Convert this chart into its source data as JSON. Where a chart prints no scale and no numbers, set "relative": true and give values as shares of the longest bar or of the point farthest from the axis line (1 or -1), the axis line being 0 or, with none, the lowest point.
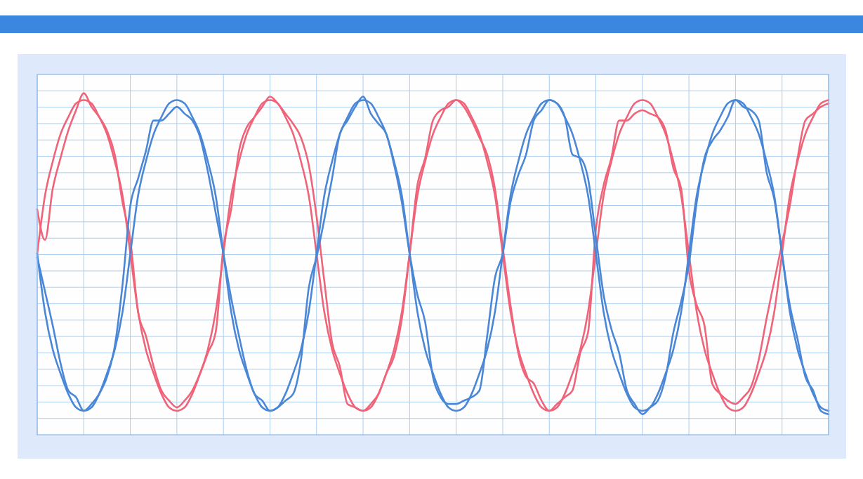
{
  "chart_data": {
    "type": "line",
    "relative": true,
    "grid": true,
    "categories": [
      null,
      null,
      null,
      null,
      null,
      null,
      null,
      null,
      null,
      null,
      null,
      null,
      null,
      null,
      null,
      null,
      null,
      null,
      null,
      null,
      null,
      null,
      null,
      null,
      null,
      null,
      null,
      null,
      null,
      null,
      null,
      null,
      null,
      null,
      null,
      null,
      null,
      null,
      null,
      null,
      null,
      null,
      null,
      null,
      null,
      null,
      null,
      null,
      null,
      null,
      null,
      null,
      null,
      null,
      null,
      null,
      null,
      null,
      null,
      null,
      null,
      null,
      null,
      null,
      null,
      null,
      null,
      null,
      null,
      null,
      null,
      null,
      null,
      null,
      null,
      null,
      null,
      null,
      null,
      null,
      null,
      null,
      null,
      null,
      null,
      null,
      null,
      null,
      null,
      null,
      null,
      null,
      null,
      null,
      null,
      null,
      null,
      null,
      null,
      null,
      null,
      null,
      null
    ],
    "series": [
      {
        "color": "#ef6479",
        "values": [
          0.53,
          0.7,
          0.8,
          0.88,
          0.93,
          0.97,
          0.98,
          0.97,
          0.93,
          0.88,
          0.8,
          0.7,
          0.53,
          0.36,
          0.25,
          0.18,
          0.12,
          0.08,
          0.07,
          0.08,
          0.12,
          0.18,
          0.25,
          0.36,
          0.53,
          0.7,
          0.8,
          0.88,
          0.93,
          0.97,
          0.98,
          0.97,
          0.93,
          0.88,
          0.8,
          0.7,
          0.53,
          0.36,
          0.25,
          0.18,
          0.12,
          0.08,
          0.07,
          0.08,
          0.12,
          0.18,
          0.25,
          0.36,
          0.53,
          0.7,
          0.8,
          0.88,
          0.93,
          0.97,
          0.98,
          0.97,
          0.93,
          0.88,
          0.8,
          0.7,
          0.53,
          0.36,
          0.25,
          0.18,
          0.12,
          0.08,
          0.07,
          0.08,
          0.12,
          0.18,
          0.25,
          0.36,
          0.53,
          0.7,
          0.8,
          0.88,
          0.93,
          0.97,
          0.98,
          0.97,
          0.93,
          0.88,
          0.8,
          0.7,
          0.53,
          0.36,
          0.25,
          0.18,
          0.12,
          0.08,
          0.07,
          0.08,
          0.12,
          0.18,
          0.25,
          0.36,
          0.53,
          0.7,
          0.8,
          0.88,
          0.93,
          0.97,
          0.98
        ]
      },
      {
        "color": "#ef6479",
        "values": [
          0.66,
          0.57,
          0.72,
          0.81,
          0.89,
          0.95,
          1.0,
          0.96,
          0.93,
          0.89,
          0.82,
          0.68,
          0.57,
          0.36,
          0.29,
          0.2,
          0.13,
          0.1,
          0.08,
          0.1,
          0.13,
          0.18,
          0.24,
          0.3,
          0.55,
          0.66,
          0.83,
          0.9,
          0.93,
          0.96,
          0.99,
          0.97,
          0.94,
          0.91,
          0.87,
          0.79,
          0.64,
          0.45,
          0.27,
          0.2,
          0.09,
          0.08,
          0.07,
          0.09,
          0.12,
          0.18,
          0.23,
          0.34,
          0.53,
          0.73,
          0.81,
          0.92,
          0.95,
          0.96,
          0.98,
          0.96,
          0.92,
          0.87,
          0.82,
          0.72,
          0.55,
          0.38,
          0.24,
          0.17,
          0.15,
          0.1,
          0.07,
          0.09,
          0.11,
          0.13,
          0.24,
          0.3,
          0.6,
          0.73,
          0.81,
          0.92,
          0.92,
          0.94,
          0.95,
          0.94,
          0.93,
          0.89,
          0.78,
          0.72,
          0.48,
          0.38,
          0.32,
          0.15,
          0.12,
          0.1,
          0.09,
          0.11,
          0.14,
          0.22,
          0.34,
          0.45,
          0.56,
          0.67,
          0.81,
          0.92,
          0.94,
          0.96,
          0.97
        ]
      },
      {
        "color": "#4a87d6",
        "values": [
          0.53,
          0.36,
          0.25,
          0.18,
          0.12,
          0.08,
          0.07,
          0.08,
          0.12,
          0.18,
          0.25,
          0.36,
          0.53,
          0.7,
          0.8,
          0.88,
          0.93,
          0.97,
          0.98,
          0.97,
          0.93,
          0.88,
          0.8,
          0.7,
          0.53,
          0.36,
          0.25,
          0.18,
          0.12,
          0.08,
          0.07,
          0.08,
          0.12,
          0.18,
          0.25,
          0.36,
          0.53,
          0.7,
          0.8,
          0.88,
          0.93,
          0.97,
          0.98,
          0.97,
          0.93,
          0.88,
          0.8,
          0.7,
          0.53,
          0.36,
          0.25,
          0.18,
          0.12,
          0.08,
          0.07,
          0.08,
          0.12,
          0.18,
          0.25,
          0.36,
          0.53,
          0.7,
          0.8,
          0.88,
          0.93,
          0.97,
          0.98,
          0.97,
          0.93,
          0.88,
          0.8,
          0.7,
          0.53,
          0.36,
          0.25,
          0.18,
          0.12,
          0.08,
          0.07,
          0.08,
          0.12,
          0.18,
          0.25,
          0.36,
          0.53,
          0.7,
          0.8,
          0.88,
          0.93,
          0.97,
          0.98,
          0.97,
          0.93,
          0.88,
          0.8,
          0.7,
          0.53,
          0.36,
          0.25,
          0.18,
          0.12,
          0.08,
          0.07
        ]
      },
      {
        "color": "#4a87d6",
        "values": [
          0.52,
          0.42,
          0.32,
          0.21,
          0.13,
          0.11,
          0.07,
          0.09,
          0.12,
          0.17,
          0.26,
          0.44,
          0.67,
          0.75,
          0.83,
          0.92,
          0.92,
          0.94,
          0.96,
          0.94,
          0.92,
          0.87,
          0.77,
          0.65,
          0.53,
          0.4,
          0.29,
          0.19,
          0.12,
          0.1,
          0.07,
          0.08,
          0.1,
          0.12,
          0.22,
          0.43,
          0.52,
          0.63,
          0.75,
          0.88,
          0.92,
          0.96,
          0.99,
          0.94,
          0.91,
          0.88,
          0.79,
          0.68,
          0.53,
          0.41,
          0.33,
          0.17,
          0.11,
          0.09,
          0.09,
          0.1,
          0.11,
          0.13,
          0.29,
          0.46,
          0.53,
          0.68,
          0.76,
          0.82,
          0.92,
          0.95,
          0.98,
          0.97,
          0.93,
          0.82,
          0.81,
          0.75,
          0.58,
          0.41,
          0.31,
          0.24,
          0.13,
          0.09,
          0.06,
          0.08,
          0.1,
          0.17,
          0.3,
          0.39,
          0.5,
          0.68,
          0.81,
          0.86,
          0.89,
          0.93,
          0.98,
          0.96,
          0.95,
          0.92,
          0.77,
          0.69,
          0.53,
          0.38,
          0.28,
          0.17,
          0.13,
          0.07,
          0.06
        ]
      }
    ]
  }
}
